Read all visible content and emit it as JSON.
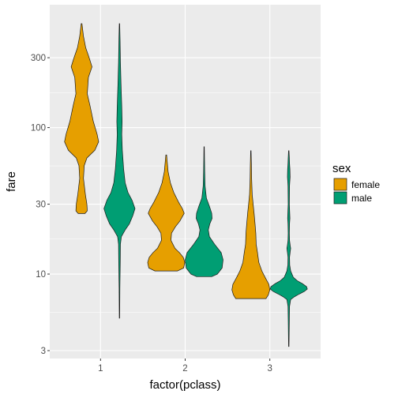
{
  "chart_data": {
    "type": "violin",
    "xlabel": "factor(pclass)",
    "ylabel": "fare",
    "y_scale": "log10",
    "ylim": [
      2.65,
      690
    ],
    "y_ticks": [
      3,
      10,
      30,
      100,
      300
    ],
    "y_tick_labels": [
      "3",
      "10",
      "30",
      "100",
      "300"
    ],
    "categories": [
      "1",
      "2",
      "3"
    ],
    "grid": true,
    "legend": {
      "title": "sex",
      "placement": "right",
      "entries": [
        "female",
        "male"
      ]
    },
    "series": [
      {
        "name": "female",
        "color": "#E69F00",
        "violins": [
          {
            "category": "1",
            "min": 25.9,
            "max": 512,
            "profile": [
              [
                25.9,
                0.18
              ],
              [
                27,
                0.3
              ],
              [
                30,
                0.28
              ],
              [
                35,
                0.2
              ],
              [
                45,
                0.1
              ],
              [
                55,
                0.14
              ],
              [
                62,
                0.28
              ],
              [
                70,
                0.7
              ],
              [
                80,
                0.9
              ],
              [
                90,
                0.82
              ],
              [
                110,
                0.62
              ],
              [
                140,
                0.45
              ],
              [
                170,
                0.3
              ],
              [
                220,
                0.36
              ],
              [
                260,
                0.55
              ],
              [
                300,
                0.4
              ],
              [
                350,
                0.22
              ],
              [
                420,
                0.1
              ],
              [
                512,
                0.02
              ]
            ]
          },
          {
            "category": "2",
            "min": 10.5,
            "max": 65,
            "profile": [
              [
                10.5,
                0.6
              ],
              [
                11,
                0.92
              ],
              [
                12,
                0.98
              ],
              [
                13,
                0.9
              ],
              [
                14,
                0.7
              ],
              [
                15,
                0.46
              ],
              [
                17,
                0.25
              ],
              [
                19,
                0.28
              ],
              [
                21,
                0.48
              ],
              [
                23,
                0.72
              ],
              [
                26,
                0.95
              ],
              [
                28,
                0.85
              ],
              [
                31,
                0.65
              ],
              [
                36,
                0.4
              ],
              [
                42,
                0.22
              ],
              [
                50,
                0.1
              ],
              [
                65,
                0.02
              ]
            ]
          },
          {
            "category": "3",
            "min": 6.8,
            "max": 69.5,
            "profile": [
              [
                6.8,
                0.8
              ],
              [
                7.2,
                0.92
              ],
              [
                7.8,
                1.0
              ],
              [
                8.5,
                0.95
              ],
              [
                9.5,
                0.75
              ],
              [
                10.5,
                0.58
              ],
              [
                12,
                0.42
              ],
              [
                14,
                0.35
              ],
              [
                16,
                0.28
              ],
              [
                19,
                0.26
              ],
              [
                22,
                0.22
              ],
              [
                26,
                0.17
              ],
              [
                30,
                0.12
              ],
              [
                35,
                0.07
              ],
              [
                45,
                0.04
              ],
              [
                55,
                0.03
              ],
              [
                69.5,
                0.01
              ]
            ]
          }
        ]
      },
      {
        "name": "male",
        "color": "#009E73",
        "violins": [
          {
            "category": "1",
            "min": 5.0,
            "max": 512,
            "profile": [
              [
                5.0,
                0.01
              ],
              [
                8,
                0.02
              ],
              [
                12,
                0.04
              ],
              [
                16,
                0.05
              ],
              [
                18,
                0.1
              ],
              [
                20,
                0.3
              ],
              [
                22,
                0.52
              ],
              [
                25,
                0.7
              ],
              [
                28,
                0.82
              ],
              [
                32,
                0.66
              ],
              [
                36,
                0.45
              ],
              [
                42,
                0.3
              ],
              [
                52,
                0.22
              ],
              [
                70,
                0.15
              ],
              [
                90,
                0.12
              ],
              [
                110,
                0.14
              ],
              [
                140,
                0.12
              ],
              [
                200,
                0.08
              ],
              [
                280,
                0.05
              ],
              [
                400,
                0.03
              ],
              [
                512,
                0.01
              ]
            ]
          },
          {
            "category": "2",
            "min": 9.6,
            "max": 74,
            "profile": [
              [
                9.6,
                0.4
              ],
              [
                10,
                0.7
              ],
              [
                11,
                0.95
              ],
              [
                12.5,
                1.0
              ],
              [
                14,
                0.9
              ],
              [
                16,
                0.55
              ],
              [
                18,
                0.28
              ],
              [
                20,
                0.22
              ],
              [
                22,
                0.3
              ],
              [
                24,
                0.42
              ],
              [
                26,
                0.4
              ],
              [
                29,
                0.28
              ],
              [
                33,
                0.12
              ],
              [
                40,
                0.05
              ],
              [
                50,
                0.03
              ],
              [
                60,
                0.02
              ],
              [
                74,
                0.01
              ]
            ]
          },
          {
            "category": "3",
            "min": 3.2,
            "max": 69.5,
            "profile": [
              [
                3.2,
                0.01
              ],
              [
                4,
                0.02
              ],
              [
                5,
                0.03
              ],
              [
                6,
                0.04
              ],
              [
                6.7,
                0.1
              ],
              [
                7,
                0.3
              ],
              [
                7.3,
                0.55
              ],
              [
                7.6,
                0.82
              ],
              [
                7.9,
                0.98
              ],
              [
                8.2,
                0.94
              ],
              [
                8.6,
                0.72
              ],
              [
                9.0,
                0.45
              ],
              [
                9.5,
                0.24
              ],
              [
                10.5,
                0.1
              ],
              [
                11.5,
                0.05
              ],
              [
                13,
                0.04
              ],
              [
                14,
                0.07
              ],
              [
                15,
                0.1
              ],
              [
                15.5,
                0.08
              ],
              [
                17,
                0.04
              ],
              [
                19,
                0.03
              ],
              [
                22,
                0.04
              ],
              [
                24,
                0.06
              ],
              [
                26,
                0.05
              ],
              [
                30,
                0.03
              ],
              [
                40,
                0.04
              ],
              [
                46,
                0.07
              ],
              [
                52,
                0.06
              ],
              [
                57,
                0.04
              ],
              [
                62,
                0.03
              ],
              [
                69.5,
                0.01
              ]
            ]
          }
        ]
      }
    ]
  }
}
